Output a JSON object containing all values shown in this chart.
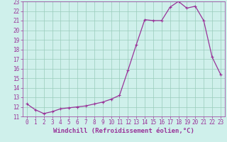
{
  "x": [
    0,
    1,
    2,
    3,
    4,
    5,
    6,
    7,
    8,
    9,
    10,
    11,
    12,
    13,
    14,
    15,
    16,
    17,
    18,
    19,
    20,
    21,
    22,
    23
  ],
  "y": [
    12.3,
    11.7,
    11.3,
    11.5,
    11.8,
    11.9,
    12.0,
    12.1,
    12.3,
    12.5,
    12.8,
    13.2,
    15.8,
    18.5,
    21.1,
    21.0,
    21.0,
    22.4,
    23.0,
    22.3,
    22.5,
    21.0,
    17.2,
    15.4
  ],
  "line_color": "#993399",
  "marker": "+",
  "marker_size": 3.5,
  "marker_linewidth": 0.8,
  "linewidth": 0.9,
  "bg_color": "#cff0eb",
  "grid_color": "#99ccbb",
  "xlabel": "Windchill (Refroidissement éolien,°C)",
  "xlabel_fontsize": 6.5,
  "ylim": [
    11,
    23
  ],
  "xlim": [
    -0.5,
    23.5
  ],
  "yticks": [
    11,
    12,
    13,
    14,
    15,
    16,
    17,
    18,
    19,
    20,
    21,
    22,
    23
  ],
  "xticks": [
    0,
    1,
    2,
    3,
    4,
    5,
    6,
    7,
    8,
    9,
    10,
    11,
    12,
    13,
    14,
    15,
    16,
    17,
    18,
    19,
    20,
    21,
    22,
    23
  ],
  "tick_fontsize": 5.5,
  "tick_color": "#993399",
  "axis_color": "#993399",
  "xlabel_fontweight": "bold"
}
